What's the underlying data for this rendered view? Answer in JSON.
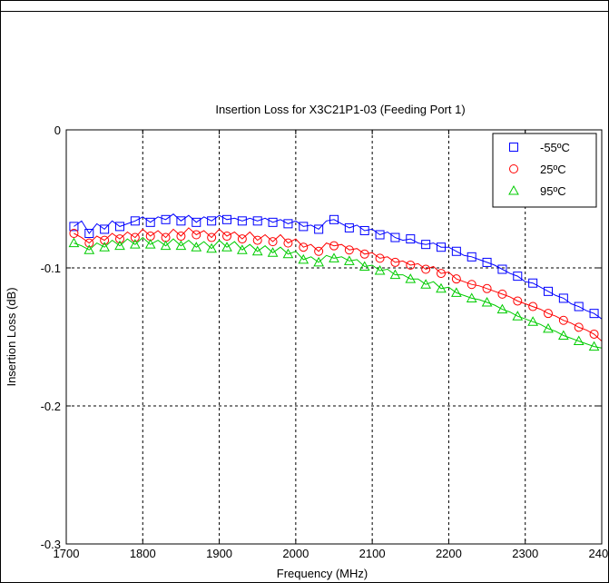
{
  "chart_data": {
    "type": "line",
    "title": "Insertion Loss for X3C21P1-03 (Feeding Port 1)",
    "xlabel": "Frequency (MHz)",
    "ylabel": "Insertion Loss (dB)",
    "xlim": [
      1700,
      2400
    ],
    "ylim": [
      -0.3,
      0
    ],
    "xticks": [
      1700,
      1800,
      1900,
      2000,
      2100,
      2200,
      2300,
      2400
    ],
    "xtick_labels": [
      "1700",
      "1800",
      "1900",
      "2000",
      "2100",
      "2200",
      "2300",
      "2400"
    ],
    "yticks": [
      0,
      -0.1,
      -0.2,
      -0.3
    ],
    "ytick_labels": [
      "0",
      "-0.1",
      "-0.2",
      "-0.3"
    ],
    "grid": true,
    "legend_position": "top-right",
    "series": [
      {
        "name": "-55ºC",
        "color": "#0000ff",
        "marker": "square",
        "x": [
          1710,
          1720,
          1730,
          1740,
          1750,
          1760,
          1770,
          1780,
          1790,
          1800,
          1810,
          1820,
          1830,
          1840,
          1850,
          1860,
          1870,
          1880,
          1890,
          1900,
          1910,
          1920,
          1930,
          1940,
          1950,
          1960,
          1970,
          1980,
          1990,
          2000,
          2010,
          2020,
          2030,
          2040,
          2050,
          2060,
          2070,
          2080,
          2090,
          2100,
          2110,
          2120,
          2130,
          2140,
          2150,
          2160,
          2170,
          2180,
          2190,
          2200,
          2210,
          2220,
          2230,
          2240,
          2250,
          2260,
          2270,
          2280,
          2290,
          2300,
          2310,
          2320,
          2330,
          2340,
          2350,
          2360,
          2370,
          2380,
          2390,
          2400
        ],
        "y": [
          -0.07,
          -0.066,
          -0.075,
          -0.068,
          -0.072,
          -0.066,
          -0.07,
          -0.068,
          -0.066,
          -0.063,
          -0.067,
          -0.063,
          -0.065,
          -0.061,
          -0.066,
          -0.062,
          -0.067,
          -0.063,
          -0.066,
          -0.062,
          -0.065,
          -0.064,
          -0.066,
          -0.064,
          -0.066,
          -0.064,
          -0.067,
          -0.065,
          -0.068,
          -0.066,
          -0.07,
          -0.069,
          -0.072,
          -0.066,
          -0.065,
          -0.068,
          -0.071,
          -0.069,
          -0.073,
          -0.072,
          -0.076,
          -0.074,
          -0.078,
          -0.08,
          -0.079,
          -0.082,
          -0.083,
          -0.082,
          -0.085,
          -0.085,
          -0.088,
          -0.091,
          -0.092,
          -0.094,
          -0.096,
          -0.098,
          -0.101,
          -0.104,
          -0.106,
          -0.11,
          -0.111,
          -0.114,
          -0.117,
          -0.12,
          -0.122,
          -0.126,
          -0.128,
          -0.131,
          -0.133,
          -0.137
        ]
      },
      {
        "name": "25ºC",
        "color": "#ff0000",
        "marker": "circle",
        "x": [
          1710,
          1720,
          1730,
          1740,
          1750,
          1760,
          1770,
          1780,
          1790,
          1800,
          1810,
          1820,
          1830,
          1840,
          1850,
          1860,
          1870,
          1880,
          1890,
          1900,
          1910,
          1920,
          1930,
          1940,
          1950,
          1960,
          1970,
          1980,
          1990,
          2000,
          2010,
          2020,
          2030,
          2040,
          2050,
          2060,
          2070,
          2080,
          2090,
          2100,
          2110,
          2120,
          2130,
          2140,
          2150,
          2160,
          2170,
          2180,
          2190,
          2200,
          2210,
          2220,
          2230,
          2240,
          2250,
          2260,
          2270,
          2280,
          2290,
          2300,
          2310,
          2320,
          2330,
          2340,
          2350,
          2360,
          2370,
          2380,
          2390,
          2400
        ],
        "y": [
          -0.075,
          -0.078,
          -0.082,
          -0.077,
          -0.08,
          -0.075,
          -0.079,
          -0.074,
          -0.078,
          -0.072,
          -0.077,
          -0.073,
          -0.078,
          -0.072,
          -0.077,
          -0.071,
          -0.076,
          -0.073,
          -0.078,
          -0.072,
          -0.077,
          -0.074,
          -0.079,
          -0.074,
          -0.08,
          -0.076,
          -0.081,
          -0.076,
          -0.082,
          -0.079,
          -0.085,
          -0.083,
          -0.088,
          -0.082,
          -0.084,
          -0.083,
          -0.087,
          -0.086,
          -0.09,
          -0.089,
          -0.093,
          -0.092,
          -0.096,
          -0.095,
          -0.098,
          -0.097,
          -0.101,
          -0.099,
          -0.104,
          -0.103,
          -0.108,
          -0.11,
          -0.112,
          -0.113,
          -0.115,
          -0.117,
          -0.119,
          -0.121,
          -0.124,
          -0.126,
          -0.128,
          -0.13,
          -0.133,
          -0.135,
          -0.138,
          -0.14,
          -0.143,
          -0.145,
          -0.148,
          -0.153
        ]
      },
      {
        "name": "95ºC",
        "color": "#00cc00",
        "marker": "triangle",
        "x": [
          1710,
          1720,
          1730,
          1740,
          1750,
          1760,
          1770,
          1780,
          1790,
          1800,
          1810,
          1820,
          1830,
          1840,
          1850,
          1860,
          1870,
          1880,
          1890,
          1900,
          1910,
          1920,
          1930,
          1940,
          1950,
          1960,
          1970,
          1980,
          1990,
          2000,
          2010,
          2020,
          2030,
          2040,
          2050,
          2060,
          2070,
          2080,
          2090,
          2100,
          2110,
          2120,
          2130,
          2140,
          2150,
          2160,
          2170,
          2180,
          2190,
          2200,
          2210,
          2220,
          2230,
          2240,
          2250,
          2260,
          2270,
          2280,
          2290,
          2300,
          2310,
          2320,
          2330,
          2340,
          2350,
          2360,
          2370,
          2380,
          2390,
          2400
        ],
        "y": [
          -0.082,
          -0.084,
          -0.087,
          -0.082,
          -0.085,
          -0.08,
          -0.084,
          -0.079,
          -0.083,
          -0.078,
          -0.083,
          -0.08,
          -0.084,
          -0.079,
          -0.084,
          -0.08,
          -0.085,
          -0.081,
          -0.086,
          -0.08,
          -0.085,
          -0.081,
          -0.087,
          -0.083,
          -0.088,
          -0.084,
          -0.089,
          -0.085,
          -0.09,
          -0.088,
          -0.094,
          -0.092,
          -0.096,
          -0.091,
          -0.093,
          -0.092,
          -0.095,
          -0.094,
          -0.099,
          -0.098,
          -0.102,
          -0.101,
          -0.105,
          -0.105,
          -0.108,
          -0.108,
          -0.112,
          -0.11,
          -0.115,
          -0.114,
          -0.118,
          -0.12,
          -0.122,
          -0.123,
          -0.125,
          -0.127,
          -0.13,
          -0.132,
          -0.135,
          -0.137,
          -0.139,
          -0.141,
          -0.144,
          -0.146,
          -0.149,
          -0.151,
          -0.153,
          -0.155,
          -0.157,
          -0.158
        ]
      }
    ]
  }
}
